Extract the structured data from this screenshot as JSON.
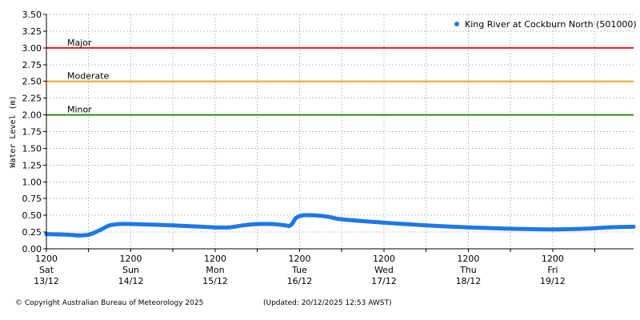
{
  "chart_data": {
    "type": "line",
    "ylabel": "Water Level (m)",
    "ylim": [
      0,
      3.5
    ],
    "yticks": [
      0.0,
      0.25,
      0.5,
      0.75,
      1.0,
      1.25,
      1.5,
      1.75,
      2.0,
      2.25,
      2.5,
      2.75,
      3.0,
      3.25,
      3.5
    ],
    "ytick_labels": [
      "0.00",
      "0.25",
      "0.50",
      "0.75",
      "1.00",
      "1.25",
      "1.50",
      "1.75",
      "2.00",
      "2.25",
      "2.50",
      "2.75",
      "3.00",
      "3.25",
      "3.50"
    ],
    "xlim": [
      "2025-12-13T12:00",
      "2025-12-20T11:00"
    ],
    "x_ticks": [
      {
        "x": "2025-12-13T12:00",
        "time": "1200",
        "day": "Sat",
        "date": "13/12"
      },
      {
        "x": "2025-12-14T12:00",
        "time": "1200",
        "day": "Sun",
        "date": "14/12"
      },
      {
        "x": "2025-12-15T12:00",
        "time": "1200",
        "day": "Mon",
        "date": "15/12"
      },
      {
        "x": "2025-12-16T12:00",
        "time": "1200",
        "day": "Tue",
        "date": "16/12"
      },
      {
        "x": "2025-12-17T12:00",
        "time": "1200",
        "day": "Wed",
        "date": "17/12"
      },
      {
        "x": "2025-12-18T12:00",
        "time": "1200",
        "day": "Thu",
        "date": "18/12"
      },
      {
        "x": "2025-12-19T12:00",
        "time": "1200",
        "day": "Fri",
        "date": "19/12"
      }
    ],
    "grid": true,
    "legend_position": "top-right",
    "series": [
      {
        "name": "King River at Cockburn North (501000)",
        "color": "#1e78e6",
        "points": [
          {
            "x": "2025-12-13T12:00",
            "y": 0.22
          },
          {
            "x": "2025-12-13T18:00",
            "y": 0.21
          },
          {
            "x": "2025-12-13T21:00",
            "y": 0.2
          },
          {
            "x": "2025-12-14T00:00",
            "y": 0.21
          },
          {
            "x": "2025-12-14T02:00",
            "y": 0.25
          },
          {
            "x": "2025-12-14T04:00",
            "y": 0.3
          },
          {
            "x": "2025-12-14T06:00",
            "y": 0.35
          },
          {
            "x": "2025-12-14T09:00",
            "y": 0.37
          },
          {
            "x": "2025-12-14T12:00",
            "y": 0.37
          },
          {
            "x": "2025-12-15T00:00",
            "y": 0.35
          },
          {
            "x": "2025-12-15T12:00",
            "y": 0.32
          },
          {
            "x": "2025-12-15T16:00",
            "y": 0.32
          },
          {
            "x": "2025-12-15T20:00",
            "y": 0.35
          },
          {
            "x": "2025-12-16T00:00",
            "y": 0.37
          },
          {
            "x": "2025-12-16T04:00",
            "y": 0.37
          },
          {
            "x": "2025-12-16T08:00",
            "y": 0.35
          },
          {
            "x": "2025-12-16T09:00",
            "y": 0.34
          },
          {
            "x": "2025-12-16T10:00",
            "y": 0.38
          },
          {
            "x": "2025-12-16T11:00",
            "y": 0.46
          },
          {
            "x": "2025-12-16T13:00",
            "y": 0.5
          },
          {
            "x": "2025-12-16T16:00",
            "y": 0.5
          },
          {
            "x": "2025-12-16T20:00",
            "y": 0.48
          },
          {
            "x": "2025-12-17T00:00",
            "y": 0.44
          },
          {
            "x": "2025-12-17T12:00",
            "y": 0.39
          },
          {
            "x": "2025-12-18T00:00",
            "y": 0.35
          },
          {
            "x": "2025-12-18T12:00",
            "y": 0.32
          },
          {
            "x": "2025-12-19T00:00",
            "y": 0.3
          },
          {
            "x": "2025-12-19T12:00",
            "y": 0.29
          },
          {
            "x": "2025-12-19T21:00",
            "y": 0.3
          },
          {
            "x": "2025-12-20T04:00",
            "y": 0.32
          },
          {
            "x": "2025-12-20T11:00",
            "y": 0.33
          }
        ]
      }
    ],
    "thresholds": [
      {
        "label": "Major",
        "value": 3.0,
        "color": "#e21a1a"
      },
      {
        "label": "Moderate",
        "value": 2.5,
        "color": "#f5a623"
      },
      {
        "label": "Minor",
        "value": 2.0,
        "color": "#2e8b17"
      }
    ]
  },
  "footer": {
    "copyright": "© Copyright Australian Bureau of Meteorology 2025",
    "updated": "(Updated: 20/12/2025 12:53 AWST)"
  }
}
